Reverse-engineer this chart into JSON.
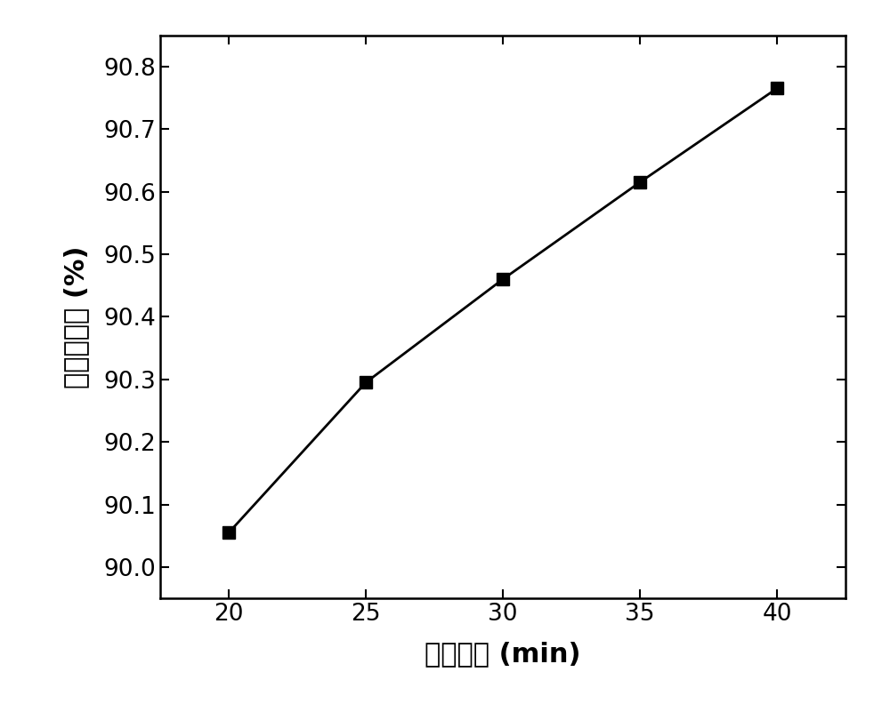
{
  "x": [
    20,
    25,
    30,
    35,
    40
  ],
  "y": [
    90.055,
    90.295,
    90.46,
    90.615,
    90.765
  ],
  "xlabel": "放电时间 (min)",
  "ylabel": "杂质去除率 (%)",
  "xlim": [
    17.5,
    42.5
  ],
  "ylim": [
    89.95,
    90.85
  ],
  "yticks": [
    90.0,
    90.1,
    90.2,
    90.3,
    90.4,
    90.5,
    90.6,
    90.7,
    90.8
  ],
  "xticks": [
    20,
    25,
    30,
    35,
    40
  ],
  "line_color": "#000000",
  "marker": "s",
  "marker_color": "#000000",
  "marker_size": 10,
  "linewidth": 2.0,
  "background_color": "#ffffff",
  "xlabel_fontsize": 22,
  "ylabel_fontsize": 22,
  "tick_fontsize": 19
}
